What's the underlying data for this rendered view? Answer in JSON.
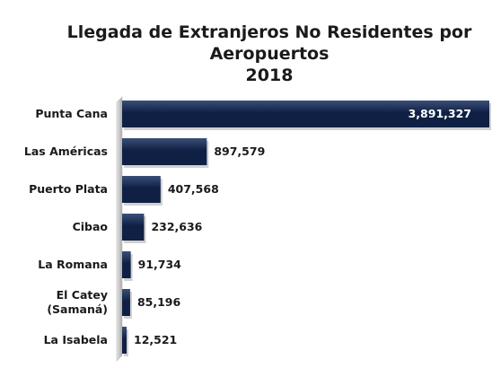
{
  "chart_data": {
    "type": "bar",
    "orientation": "horizontal",
    "title_lines": [
      "Llegada de Extranjeros No Residentes por",
      "Aeropuertos",
      "2018"
    ],
    "categories": [
      [
        "Punta Cana"
      ],
      [
        "Las Américas"
      ],
      [
        "Puerto Plata"
      ],
      [
        "Cibao"
      ],
      [
        "La Romana"
      ],
      [
        "El Catey",
        "(Samaná)"
      ],
      [
        "La Isabela"
      ]
    ],
    "values": [
      3891327,
      897579,
      407568,
      232636,
      91734,
      85196,
      12521
    ],
    "value_labels": [
      "3,891,327",
      "897,579",
      "407,568",
      "232,636",
      "91,734",
      "85,196",
      "12,521"
    ],
    "xlim": [
      0,
      3891327
    ],
    "grid": false,
    "legend": "none"
  },
  "colors": {
    "bar_dark": "#0f2044",
    "bar_light": "#3a4f78",
    "axis_wall": "#bfbfbf",
    "text": "#1a1a1a"
  }
}
